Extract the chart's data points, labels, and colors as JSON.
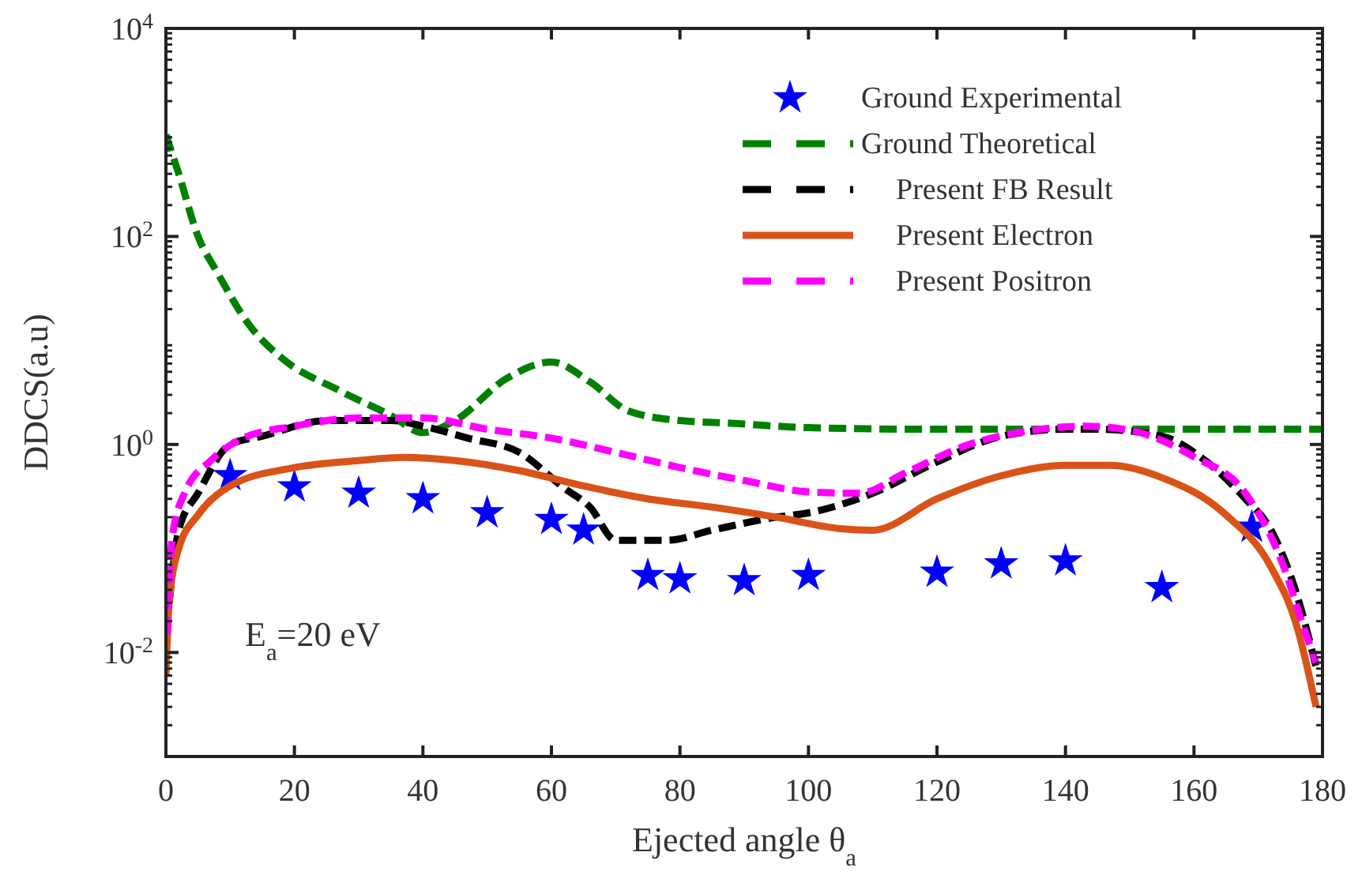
{
  "chart_data": {
    "type": "line",
    "xlabel": "Ejected angle θ$_{a}$",
    "ylabel": "DDCS(a.u)",
    "xlim": [
      0,
      180
    ],
    "xticks": [
      0,
      20,
      40,
      60,
      80,
      100,
      120,
      140,
      160,
      180
    ],
    "ylim": [
      0.001,
      10000
    ],
    "yticks": [
      {
        "value": 0.01,
        "label": "10$^{-2}$"
      },
      {
        "value": 1,
        "label": "10$^{0}$"
      },
      {
        "value": 100,
        "label": "10$^{2}$"
      },
      {
        "value": 10000,
        "label": "10$^{4}$"
      }
    ],
    "log": "y",
    "grid": false,
    "legend": "top right",
    "annotations": [
      "E$_{a}$=20 eV"
    ],
    "series": [
      {
        "name": "Ground Experimental",
        "type": "scatter",
        "marker": "star",
        "color": "#0000ff",
        "x": [
          10,
          20,
          30,
          40,
          50,
          60,
          65,
          75,
          80,
          90,
          100,
          120,
          130,
          140,
          155,
          169
        ],
        "values": [
          0.5,
          0.39,
          0.34,
          0.3,
          0.22,
          0.19,
          0.15,
          0.055,
          0.051,
          0.049,
          0.055,
          0.059,
          0.071,
          0.076,
          0.042,
          0.16
        ]
      },
      {
        "name": "Ground Theoretical",
        "line_style": "dashed",
        "color": "#008000",
        "x": [
          0,
          2,
          5,
          8,
          13,
          18,
          27,
          35,
          40,
          45,
          53,
          60,
          66,
          72,
          80,
          88,
          100,
          120,
          140,
          160,
          180
        ],
        "values": [
          950,
          400,
          100,
          45,
          14,
          6.8,
          3.3,
          1.9,
          1.3,
          1.7,
          4.3,
          6.2,
          4,
          2.1,
          1.7,
          1.6,
          1.45,
          1.4,
          1.4,
          1.4,
          1.4
        ]
      },
      {
        "name": "Present FB Result",
        "line_style": "dashed",
        "color": "#000000",
        "x": [
          0.5,
          2,
          5,
          10,
          15,
          25,
          35,
          40,
          47,
          55,
          62,
          66,
          70,
          78,
          85,
          95,
          100,
          110,
          120,
          130,
          140,
          145,
          155,
          162,
          168,
          172,
          176,
          179
        ],
        "values": [
          0.03,
          0.15,
          0.34,
          1,
          1.2,
          1.7,
          1.7,
          1.5,
          1.15,
          0.84,
          0.38,
          0.25,
          0.12,
          0.12,
          0.15,
          0.2,
          0.22,
          0.34,
          0.68,
          1.2,
          1.4,
          1.4,
          1.2,
          0.68,
          0.3,
          0.15,
          0.036,
          0.0073
        ]
      },
      {
        "name": "Present Electron",
        "line_style": "solid",
        "color": "#d95319",
        "x": [
          0,
          0.5,
          2,
          5,
          10,
          20,
          30,
          37,
          45,
          55,
          65,
          75,
          85,
          95,
          105,
          110,
          120,
          130,
          140,
          147,
          155,
          165,
          172,
          176,
          179
        ],
        "values": [
          0.006,
          0.03,
          0.1,
          0.21,
          0.4,
          0.6,
          0.7,
          0.75,
          0.7,
          0.56,
          0.4,
          0.3,
          0.25,
          0.2,
          0.155,
          0.15,
          0.3,
          0.5,
          0.63,
          0.63,
          0.48,
          0.21,
          0.066,
          0.018,
          0.003
        ]
      },
      {
        "name": "Present Positron",
        "line_style": "dashed",
        "color": "#ff00ff",
        "x": [
          0.2,
          1,
          3,
          7,
          12,
          20,
          30,
          40,
          50,
          60,
          70,
          80,
          90,
          100,
          108,
          115,
          125,
          135,
          143,
          150,
          160,
          168,
          174,
          177,
          179
        ],
        "values": [
          0.015,
          0.13,
          0.35,
          0.7,
          1.15,
          1.5,
          1.8,
          1.8,
          1.4,
          1.15,
          0.84,
          0.6,
          0.45,
          0.35,
          0.34,
          0.53,
          1,
          1.37,
          1.5,
          1.37,
          0.76,
          0.34,
          0.066,
          0.018,
          0.008
        ]
      }
    ]
  }
}
